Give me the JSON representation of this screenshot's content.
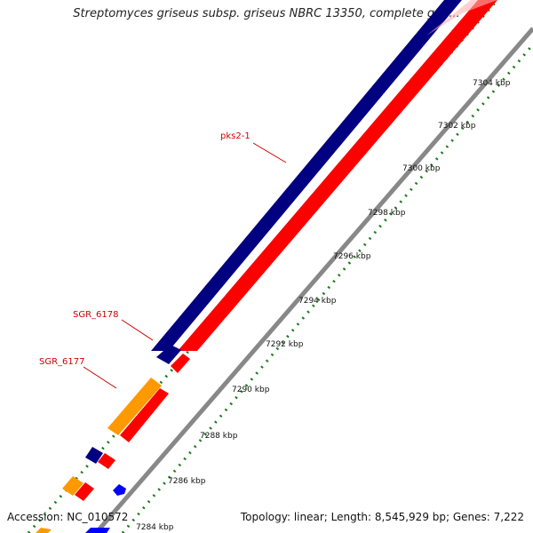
{
  "title": "Streptomyces griseus subsp. griseus NBRC 13350, complete gen...",
  "footer": {
    "accession": "Accession: NC_010572",
    "summary": "Topology: linear; Length: 8,545,929 bp; Genes: 7,222"
  },
  "gene_labels": [
    "pks2-1",
    "SGR_6178",
    "SGR_6177"
  ],
  "ruler_labels": [
    "7304 kbp",
    "7302 kbp",
    "7300 kbp",
    "7298 kbp",
    "7296 kbp",
    "7294 kbp",
    "7292 kbp",
    "7290 kbp",
    "7288 kbp",
    "7286 kbp",
    "7284 kbp"
  ],
  "colors": {
    "forward_gene": "#000080",
    "reverse_gene": "#ff0000",
    "orange_gene": "#ff9900",
    "blue_gene": "#0000ff",
    "backbone": "#888888",
    "tick": "#1a7a1a",
    "label_red": "#cc0000"
  }
}
